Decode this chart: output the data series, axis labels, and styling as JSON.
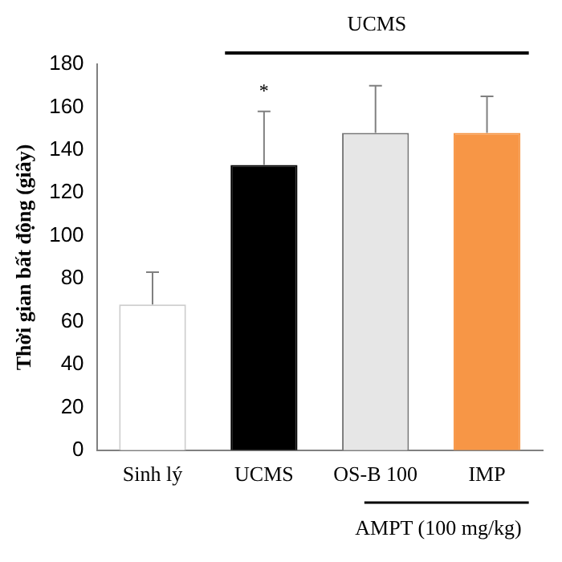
{
  "chart_data": {
    "type": "bar",
    "ylabel": "Thời gian bất động (giây)",
    "categories": [
      "Sinh lý",
      "UCMS",
      "OS-B 100",
      "IMP"
    ],
    "values": [
      68,
      133,
      148,
      148
    ],
    "colors": [
      "#ffffff",
      "#000000",
      "#e6e6e6",
      "#f79646"
    ],
    "errors": [
      [
        68,
        83
      ],
      [
        133,
        158
      ],
      [
        148,
        170
      ],
      [
        148,
        165
      ]
    ],
    "ylim": [
      0,
      180
    ],
    "yticks": [
      0,
      20,
      40,
      60,
      80,
      100,
      120,
      140,
      160,
      180
    ],
    "grid": false,
    "legend": false,
    "annotations": [
      "UCMS",
      "AMPT (100 mg/kg)",
      "*"
    ]
  }
}
